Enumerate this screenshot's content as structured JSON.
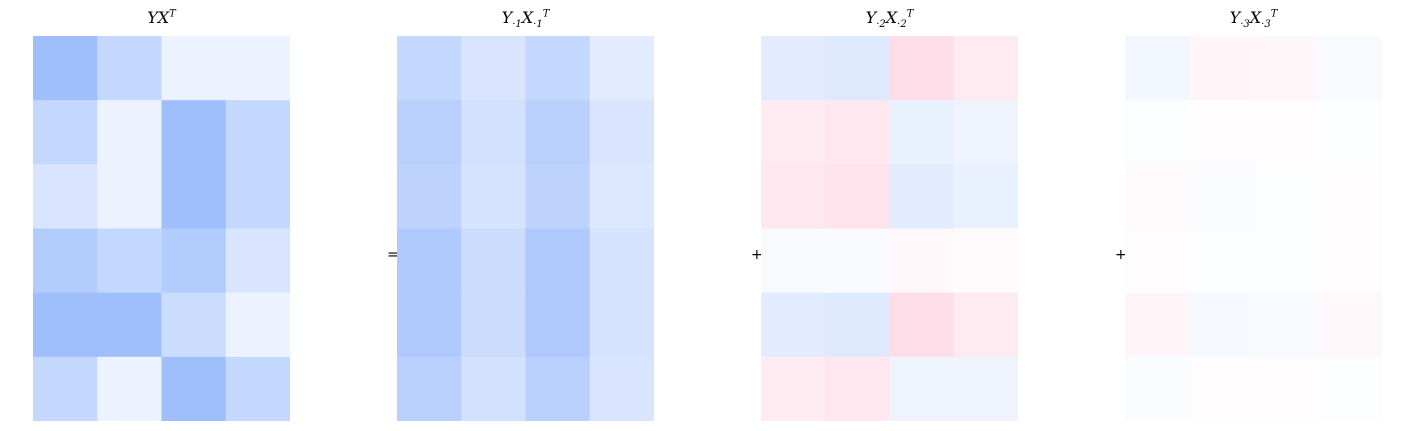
{
  "chart_data": [
    {
      "type": "heatmap",
      "title": {
        "main": "YX",
        "sub": "",
        "sup": "T"
      },
      "rows": 6,
      "cols": 4,
      "values": [
        [
          0.55,
          0.34,
          0.11,
          0.11
        ],
        [
          0.34,
          0.11,
          0.55,
          0.34
        ],
        [
          0.22,
          0.11,
          0.55,
          0.34
        ],
        [
          0.44,
          0.34,
          0.44,
          0.22
        ],
        [
          0.55,
          0.55,
          0.3,
          0.11
        ],
        [
          0.34,
          0.11,
          0.55,
          0.34
        ]
      ]
    },
    {
      "type": "heatmap",
      "title": {
        "main": "Y",
        "sub": "·1",
        "mid": "X",
        "sub2": "·1",
        "sup": "T"
      },
      "rows": 6,
      "cols": 4,
      "values": [
        [
          0.34,
          0.22,
          0.34,
          0.16
        ],
        [
          0.4,
          0.26,
          0.4,
          0.22
        ],
        [
          0.38,
          0.24,
          0.38,
          0.2
        ],
        [
          0.46,
          0.3,
          0.46,
          0.24
        ],
        [
          0.46,
          0.3,
          0.46,
          0.24
        ],
        [
          0.4,
          0.26,
          0.4,
          0.22
        ]
      ]
    },
    {
      "type": "heatmap",
      "title": {
        "main": "Y",
        "sub": "·2",
        "mid": "X",
        "sub2": "·2",
        "sup": "T"
      },
      "rows": 6,
      "cols": 4,
      "values": [
        [
          0.16,
          0.19,
          -0.2,
          -0.12
        ],
        [
          -0.12,
          -0.14,
          0.12,
          0.1
        ],
        [
          -0.14,
          -0.16,
          0.16,
          0.12
        ],
        [
          0.04,
          0.04,
          -0.04,
          -0.03
        ],
        [
          0.16,
          0.19,
          -0.2,
          -0.12
        ],
        [
          -0.12,
          -0.14,
          0.1,
          0.1
        ]
      ]
    },
    {
      "type": "heatmap",
      "title": {
        "main": "Y",
        "sub": "·3",
        "mid": "X",
        "sub2": "·3",
        "sup": "T"
      },
      "rows": 6,
      "cols": 4,
      "values": [
        [
          0.08,
          -0.06,
          -0.05,
          0.04
        ],
        [
          0.02,
          -0.02,
          -0.02,
          0.02
        ],
        [
          -0.03,
          0.03,
          0.02,
          -0.02
        ],
        [
          -0.02,
          0.02,
          0.02,
          -0.02
        ],
        [
          -0.06,
          0.05,
          0.04,
          -0.04
        ],
        [
          0.03,
          -0.02,
          -0.02,
          0.02
        ]
      ]
    }
  ],
  "operators": [
    "=",
    "+",
    "+"
  ],
  "colors": {
    "positive": "#7aa6fb",
    "negative": "#fb7aa6",
    "neutral": "#ffffff",
    "text": "#000000"
  }
}
